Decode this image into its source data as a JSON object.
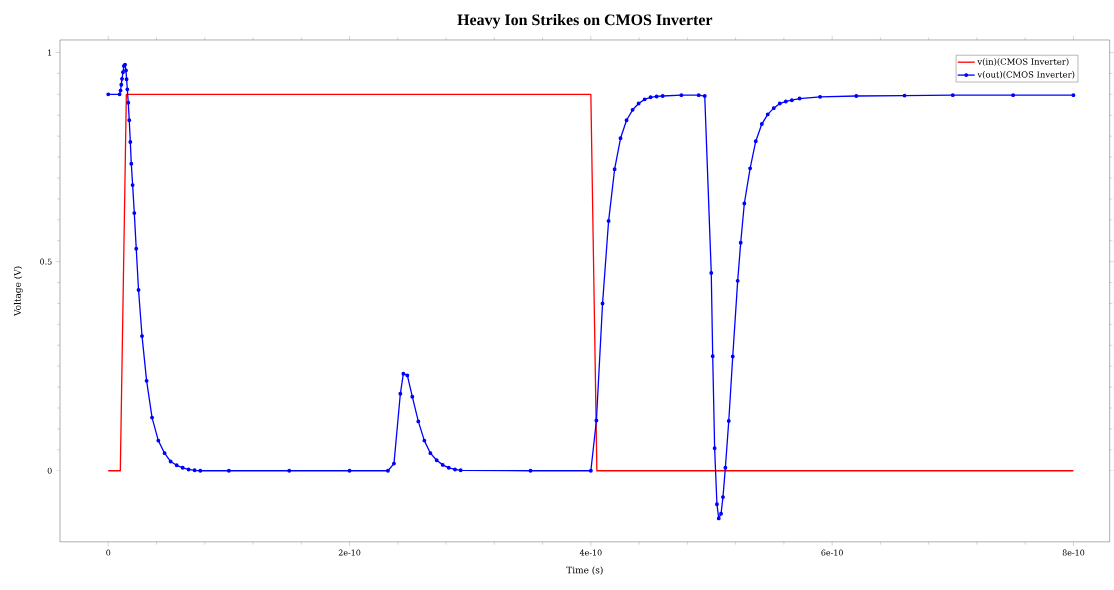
{
  "chart_data": {
    "type": "line",
    "title": "Heavy Ion Strikes on CMOS Inverter",
    "xlabel": "Time (s)",
    "ylabel": "Voltage (V)",
    "xlim": [
      -4e-11,
      8.3e-10
    ],
    "ylim": [
      -0.17,
      1.03
    ],
    "xticks": [
      0,
      2e-10,
      4e-10,
      6e-10,
      8e-10
    ],
    "yticks": [
      0,
      0.5,
      1
    ],
    "legend": "top right",
    "grid": false,
    "series": [
      {
        "name": "v(in)(CMOS Inverter)",
        "color": "#ff0000",
        "marker": "none",
        "x": [
          0,
          1e-11,
          1.5e-11,
          4e-10,
          4.05e-10,
          8e-10
        ],
        "values": [
          0,
          0,
          0.9,
          0.9,
          0,
          0
        ]
      },
      {
        "name": "v(out)(CMOS Inverter)",
        "color": "#0000ff",
        "marker": "circle",
        "x": [
          0,
          9.4e-12,
          1.02e-11,
          1.08e-11,
          1.14e-11,
          1.22e-11,
          1.3e-11,
          1.39e-11,
          1.47e-11,
          1.52e-11,
          1.58e-11,
          1.66e-11,
          1.74e-11,
          1.83e-11,
          1.91e-11,
          2.02e-11,
          2.16e-11,
          2.32e-11,
          2.51e-11,
          2.8e-11,
          3.18e-11,
          3.63e-11,
          4.15e-11,
          4.67e-11,
          5.17e-11,
          5.67e-11,
          6.17e-11,
          6.66e-11,
          7.16e-11,
          7.63e-11,
          1e-10,
          1.5e-10,
          2e-10,
          2.318e-10,
          2.368e-10,
          2.421e-10,
          2.446e-10,
          2.479e-10,
          2.52e-10,
          2.57e-10,
          2.62e-10,
          2.67e-10,
          2.722e-10,
          2.772e-10,
          2.822e-10,
          2.874e-10,
          2.921e-10,
          3.5e-10,
          4e-10,
          4.046e-10,
          4.097e-10,
          4.147e-10,
          4.197e-10,
          4.246e-10,
          4.296e-10,
          4.346e-10,
          4.396e-10,
          4.446e-10,
          4.495e-10,
          4.545e-10,
          4.595e-10,
          4.75e-10,
          4.894e-10,
          4.944e-10,
          4.998e-10,
          5.01e-10,
          5.026e-10,
          5.045e-10,
          5.06e-10,
          5.079e-10,
          5.095e-10,
          5.115e-10,
          5.143e-10,
          5.176e-10,
          5.217e-10,
          5.242e-10,
          5.272e-10,
          5.32e-10,
          5.367e-10,
          5.417e-10,
          5.466e-10,
          5.516e-10,
          5.566e-10,
          5.616e-10,
          5.666e-10,
          5.73e-10,
          5.9e-10,
          6.2e-10,
          6.6e-10,
          7e-10,
          7.5e-10,
          8e-10
        ],
        "values": [
          0.9,
          0.9,
          0.909,
          0.923,
          0.937,
          0.953,
          0.968,
          0.971,
          0.957,
          0.936,
          0.912,
          0.88,
          0.838,
          0.786,
          0.734,
          0.683,
          0.616,
          0.531,
          0.432,
          0.322,
          0.215,
          0.127,
          0.072,
          0.042,
          0.022,
          0.013,
          0.007,
          0.003,
          0.001,
          0,
          0,
          0,
          0,
          0,
          0.017,
          0.184,
          0.232,
          0.228,
          0.177,
          0.118,
          0.072,
          0.042,
          0.025,
          0.014,
          0.007,
          0.003,
          0.001,
          0,
          0,
          0.12,
          0.4,
          0.597,
          0.721,
          0.795,
          0.838,
          0.863,
          0.878,
          0.888,
          0.893,
          0.895,
          0.896,
          0.898,
          0.898,
          0.896,
          0.473,
          0.274,
          0.054,
          -0.08,
          -0.114,
          -0.103,
          -0.063,
          0.007,
          0.119,
          0.273,
          0.454,
          0.545,
          0.639,
          0.723,
          0.788,
          0.829,
          0.852,
          0.867,
          0.878,
          0.883,
          0.886,
          0.89,
          0.894,
          0.896,
          0.897,
          0.898,
          0.898,
          0.898
        ]
      }
    ]
  }
}
